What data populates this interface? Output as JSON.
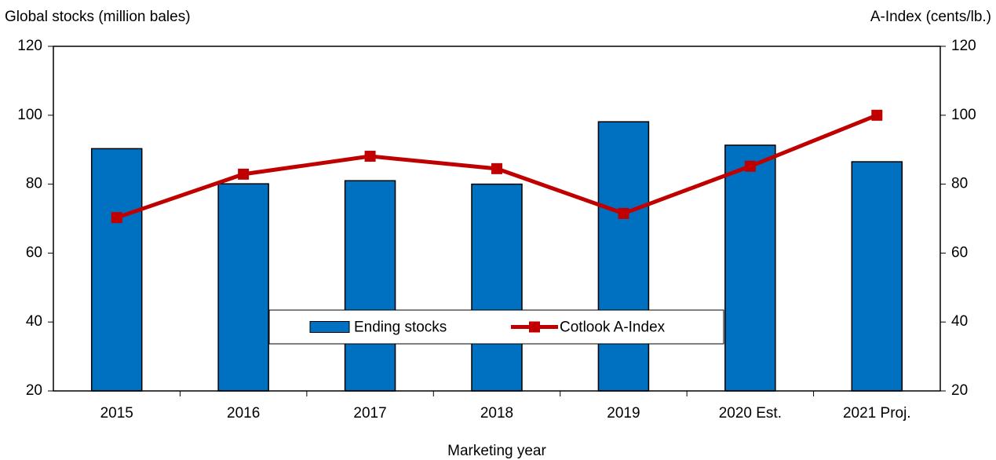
{
  "chart_data": {
    "type": "bar-line",
    "y_label": "Global stocks (million bales)",
    "y2_label": "A-Index (cents/lb.)",
    "x_label": "Marketing year",
    "categories": [
      "2015",
      "2016",
      "2017",
      "2018",
      "2019",
      "2020 Est.",
      "2021 Proj."
    ],
    "series": [
      {
        "name": "Ending stocks",
        "type": "bar",
        "color": "#0070c0",
        "values": [
          90.3,
          80.1,
          81.0,
          80.0,
          98.1,
          91.3,
          86.5
        ]
      },
      {
        "name": "Cotlook A-Index",
        "type": "line",
        "axis": "y2",
        "color": "#c00000",
        "values": [
          70.3,
          82.9,
          88.1,
          84.5,
          71.5,
          85.2,
          100
        ]
      }
    ],
    "ylim": [
      20,
      120
    ],
    "yticks": [
      20,
      40,
      60,
      80,
      100,
      120
    ],
    "y2lim": [
      20,
      120
    ],
    "y2ticks": [
      20,
      40,
      60,
      80,
      100,
      120
    ],
    "grid": false,
    "legend": "lower center"
  }
}
